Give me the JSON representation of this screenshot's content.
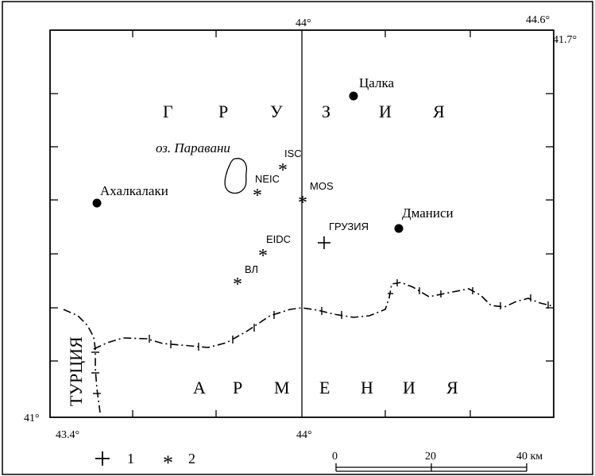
{
  "map": {
    "frame": {
      "top_left": "",
      "top_center": "44°",
      "top_right": "44.6°",
      "right_top": "41.7°",
      "bottom_left_lon": "43.4°",
      "bottom_left_lat": "41°",
      "bottom_center": "44°"
    },
    "countries": {
      "georgia": [
        "Г",
        "Р",
        "У",
        "З",
        "И",
        "Я"
      ],
      "armenia": [
        "А",
        "Р",
        "М",
        "Е",
        "Н",
        "И",
        "Я"
      ],
      "turkey": "ТУРЦИЯ"
    },
    "lake": "оз. Паравани",
    "cities": [
      {
        "id": "tsalka",
        "name": "Цалка"
      },
      {
        "id": "akhalkalaki",
        "name": "Ахалкалаки"
      },
      {
        "id": "dmanisi",
        "name": "Дманиси"
      }
    ],
    "epicenter_label": "ГРУЗИЯ",
    "agencies": [
      {
        "id": "isc",
        "name": "ISC"
      },
      {
        "id": "neic",
        "name": "NEIC"
      },
      {
        "id": "mos",
        "name": "MOS"
      },
      {
        "id": "eidc",
        "name": "EIDC"
      },
      {
        "id": "bl",
        "name": "ВЛ"
      }
    ],
    "legend": {
      "item1": "1",
      "item2": "2"
    },
    "scale": {
      "label0": "0",
      "label20": "20",
      "label40": "40 км"
    }
  }
}
